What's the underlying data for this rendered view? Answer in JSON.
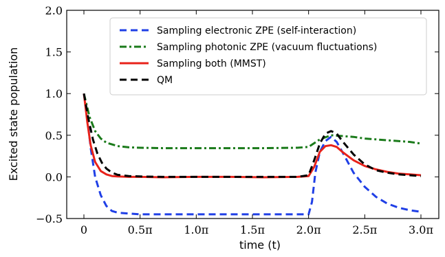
{
  "chart_data": {
    "type": "line",
    "xlabel": "time (t)",
    "ylabel": "Excited state population",
    "xlim": [
      0,
      3.0
    ],
    "ylim": [
      -0.5,
      2.0
    ],
    "x_unit": "pi",
    "x_ticks": [
      0,
      0.5,
      1.0,
      1.5,
      2.0,
      2.5,
      3.0
    ],
    "x_tick_labels": [
      "0",
      "0.5π",
      "1.0π",
      "1.5π",
      "2.0π",
      "2.5π",
      "3.0π"
    ],
    "y_ticks": [
      -0.5,
      0.0,
      0.5,
      1.0,
      1.5,
      2.0
    ],
    "y_tick_labels": [
      "−0.5",
      "0.0",
      "0.5",
      "1.0",
      "1.5",
      "2.0"
    ],
    "grid": false,
    "legend_position": "top-right",
    "series": [
      {
        "name": "Sampling electronic ZPE (self-interaction)",
        "color": "#1f3fe6",
        "style": "dashed",
        "x": [
          0,
          0.03,
          0.06,
          0.1,
          0.15,
          0.2,
          0.25,
          0.3,
          0.4,
          0.5,
          0.7,
          1.0,
          1.5,
          1.9,
          2.0,
          2.03,
          2.06,
          2.1,
          2.15,
          2.2,
          2.25,
          2.3,
          2.4,
          2.5,
          2.6,
          2.7,
          2.8,
          2.9,
          3.0
        ],
        "y": [
          1.0,
          0.72,
          0.35,
          0.0,
          -0.22,
          -0.35,
          -0.41,
          -0.43,
          -0.44,
          -0.45,
          -0.45,
          -0.45,
          -0.45,
          -0.45,
          -0.45,
          -0.3,
          0.05,
          0.3,
          0.43,
          0.48,
          0.42,
          0.3,
          0.05,
          -0.12,
          -0.24,
          -0.32,
          -0.37,
          -0.4,
          -0.42
        ]
      },
      {
        "name": "Sampling photonic ZPE (vacuum fluctuations)",
        "color": "#1a7a1a",
        "style": "dashdot",
        "x": [
          0,
          0.05,
          0.1,
          0.15,
          0.2,
          0.3,
          0.4,
          0.5,
          0.7,
          1.0,
          1.3,
          1.6,
          1.9,
          2.0,
          2.1,
          2.2,
          2.3,
          2.4,
          2.5,
          2.7,
          2.9,
          3.0
        ],
        "y": [
          1.0,
          0.72,
          0.55,
          0.46,
          0.41,
          0.37,
          0.355,
          0.35,
          0.345,
          0.345,
          0.345,
          0.345,
          0.35,
          0.36,
          0.45,
          0.5,
          0.49,
          0.48,
          0.46,
          0.44,
          0.42,
          0.4
        ]
      },
      {
        "name": "Sampling both (MMST)",
        "color": "#e8221a",
        "style": "solid",
        "x": [
          0,
          0.03,
          0.06,
          0.1,
          0.15,
          0.2,
          0.25,
          0.3,
          0.4,
          0.5,
          0.7,
          1.0,
          1.3,
          1.6,
          1.9,
          2.0,
          2.05,
          2.1,
          2.15,
          2.2,
          2.25,
          2.3,
          2.4,
          2.5,
          2.6,
          2.7,
          2.8,
          2.9,
          3.0
        ],
        "y": [
          1.0,
          0.66,
          0.38,
          0.18,
          0.07,
          0.03,
          0.01,
          0.005,
          0.0,
          0.0,
          -0.005,
          0.0,
          0.0,
          -0.005,
          0.0,
          0.01,
          0.12,
          0.3,
          0.37,
          0.38,
          0.36,
          0.3,
          0.2,
          0.13,
          0.09,
          0.06,
          0.04,
          0.03,
          0.02
        ]
      },
      {
        "name": "QM",
        "color": "#000000",
        "style": "dashed",
        "x": [
          0,
          0.04,
          0.08,
          0.12,
          0.16,
          0.2,
          0.25,
          0.3,
          0.4,
          0.5,
          0.7,
          1.0,
          1.3,
          1.6,
          1.9,
          2.0,
          2.05,
          2.1,
          2.15,
          2.2,
          2.25,
          2.3,
          2.4,
          2.5,
          2.6,
          2.7,
          2.8,
          2.9,
          3.0
        ],
        "y": [
          1.0,
          0.7,
          0.45,
          0.28,
          0.17,
          0.1,
          0.05,
          0.025,
          0.01,
          0.005,
          0.0,
          0.0,
          0.0,
          0.0,
          0.0,
          0.02,
          0.2,
          0.4,
          0.52,
          0.55,
          0.52,
          0.43,
          0.27,
          0.15,
          0.08,
          0.05,
          0.03,
          0.02,
          0.01
        ]
      }
    ]
  }
}
